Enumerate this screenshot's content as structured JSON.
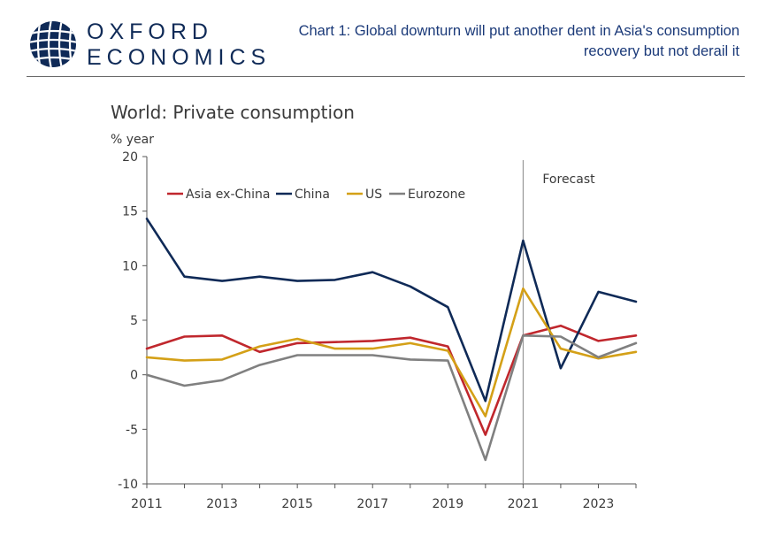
{
  "header": {
    "logo_line1": "OXFORD",
    "logo_line2": "ECONOMICS",
    "title": "Chart 1: Global downturn will put another dent in Asia's consumption recovery but not derail it"
  },
  "colors": {
    "brand_navy": "#0f2a57",
    "title_blue": "#1b3a79"
  },
  "chart_data": {
    "type": "line",
    "title": "World: Private consumption",
    "ylabel": "% year",
    "xlabel": "",
    "ylim": [
      -10,
      20
    ],
    "xlim": [
      2011,
      2024
    ],
    "y_ticks": [
      -10,
      -5,
      0,
      5,
      10,
      15,
      20
    ],
    "x_tick_labels": [
      2011,
      2013,
      2015,
      2017,
      2019,
      2021,
      2023
    ],
    "annotation": "Forecast",
    "forecast_start": 2021,
    "legend_position": "top-left",
    "x": [
      2011,
      2012,
      2013,
      2014,
      2015,
      2016,
      2017,
      2018,
      2019,
      2020,
      2021,
      2022,
      2023,
      2024
    ],
    "series": [
      {
        "name": "Asia ex-China",
        "color": "#c0272d",
        "values": [
          2.4,
          3.5,
          3.6,
          2.1,
          2.9,
          3.0,
          3.1,
          3.4,
          2.6,
          -5.5,
          3.6,
          4.5,
          3.1,
          3.6
        ]
      },
      {
        "name": "China",
        "color": "#0f2a57",
        "values": [
          14.3,
          9.0,
          8.6,
          9.0,
          8.6,
          8.7,
          9.4,
          8.1,
          6.2,
          -2.4,
          12.3,
          0.6,
          7.6,
          6.7
        ]
      },
      {
        "name": "US",
        "color": "#d4a017",
        "values": [
          1.6,
          1.3,
          1.4,
          2.6,
          3.3,
          2.4,
          2.4,
          2.9,
          2.2,
          -3.8,
          7.9,
          2.4,
          1.5,
          2.1
        ]
      },
      {
        "name": "Eurozone",
        "color": "#808080",
        "values": [
          0.0,
          -1.0,
          -0.5,
          0.9,
          1.8,
          1.8,
          1.8,
          1.4,
          1.3,
          -7.8,
          3.6,
          3.5,
          1.6,
          2.9
        ]
      }
    ]
  }
}
